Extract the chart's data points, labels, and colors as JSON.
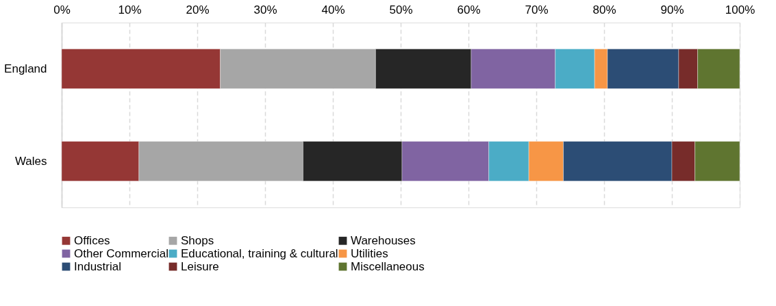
{
  "chart_data": {
    "type": "bar",
    "orientation": "horizontal",
    "stacked": true,
    "categories": [
      "England",
      "Wales"
    ],
    "series": [
      {
        "name": "Offices",
        "color": "#953735",
        "values": [
          23.4,
          11.4
        ]
      },
      {
        "name": "Shops",
        "color": "#a6a6a6",
        "values": [
          22.9,
          24.2
        ]
      },
      {
        "name": "Warehouses",
        "color": "#262626",
        "values": [
          14.1,
          14.6
        ]
      },
      {
        "name": "Other Commercial",
        "color": "#8064a2",
        "values": [
          12.4,
          12.8
        ]
      },
      {
        "name": "Educational, training & cultural",
        "color": "#4bacc6",
        "values": [
          5.8,
          5.9
        ]
      },
      {
        "name": "Utilities",
        "color": "#f79646",
        "values": [
          1.9,
          5.1
        ]
      },
      {
        "name": "Industrial",
        "color": "#2c4d75",
        "values": [
          10.5,
          16.0
        ]
      },
      {
        "name": "Leisure",
        "color": "#772c2a",
        "values": [
          2.8,
          3.4
        ]
      },
      {
        "name": "Miscellaneous",
        "color": "#5f7530",
        "values": [
          6.2,
          6.6
        ]
      }
    ],
    "xlim": [
      0,
      100
    ],
    "xticks": [
      {
        "value": 0,
        "label": "0%"
      },
      {
        "value": 10,
        "label": "10%"
      },
      {
        "value": 20,
        "label": "20%"
      },
      {
        "value": 30,
        "label": "30%"
      },
      {
        "value": 40,
        "label": "40%"
      },
      {
        "value": 50,
        "label": "50%"
      },
      {
        "value": 60,
        "label": "60%"
      },
      {
        "value": 70,
        "label": "70%"
      },
      {
        "value": 80,
        "label": "80%"
      },
      {
        "value": 90,
        "label": "90%"
      },
      {
        "value": 100,
        "label": "100%"
      }
    ],
    "grid": "x",
    "legend": "bottom"
  }
}
